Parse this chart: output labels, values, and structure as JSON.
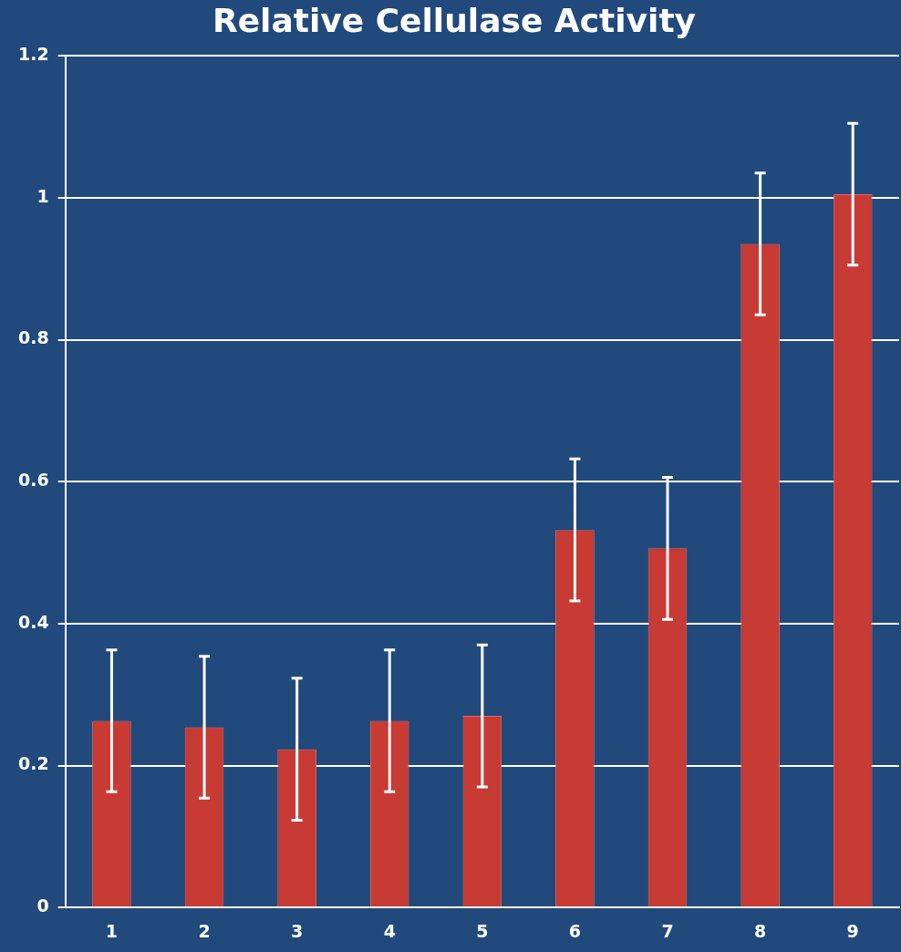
{
  "chart_data": {
    "type": "bar",
    "title": "Relative Cellulase Activity",
    "categories": [
      "1",
      "2",
      "3",
      "4",
      "5",
      "6",
      "7",
      "8",
      "9"
    ],
    "values": [
      0.263,
      0.254,
      0.223,
      0.263,
      0.27,
      0.532,
      0.506,
      0.935,
      1.005
    ],
    "errors": [
      0.1,
      0.1,
      0.1,
      0.1,
      0.1,
      0.1,
      0.1,
      0.1,
      0.1
    ],
    "color": "#c83a34",
    "ylim": [
      0,
      1.2
    ],
    "yticks": [
      0,
      0.2,
      0.4,
      0.6,
      0.8,
      1,
      1.2
    ],
    "grid": "y",
    "legend": false
  }
}
